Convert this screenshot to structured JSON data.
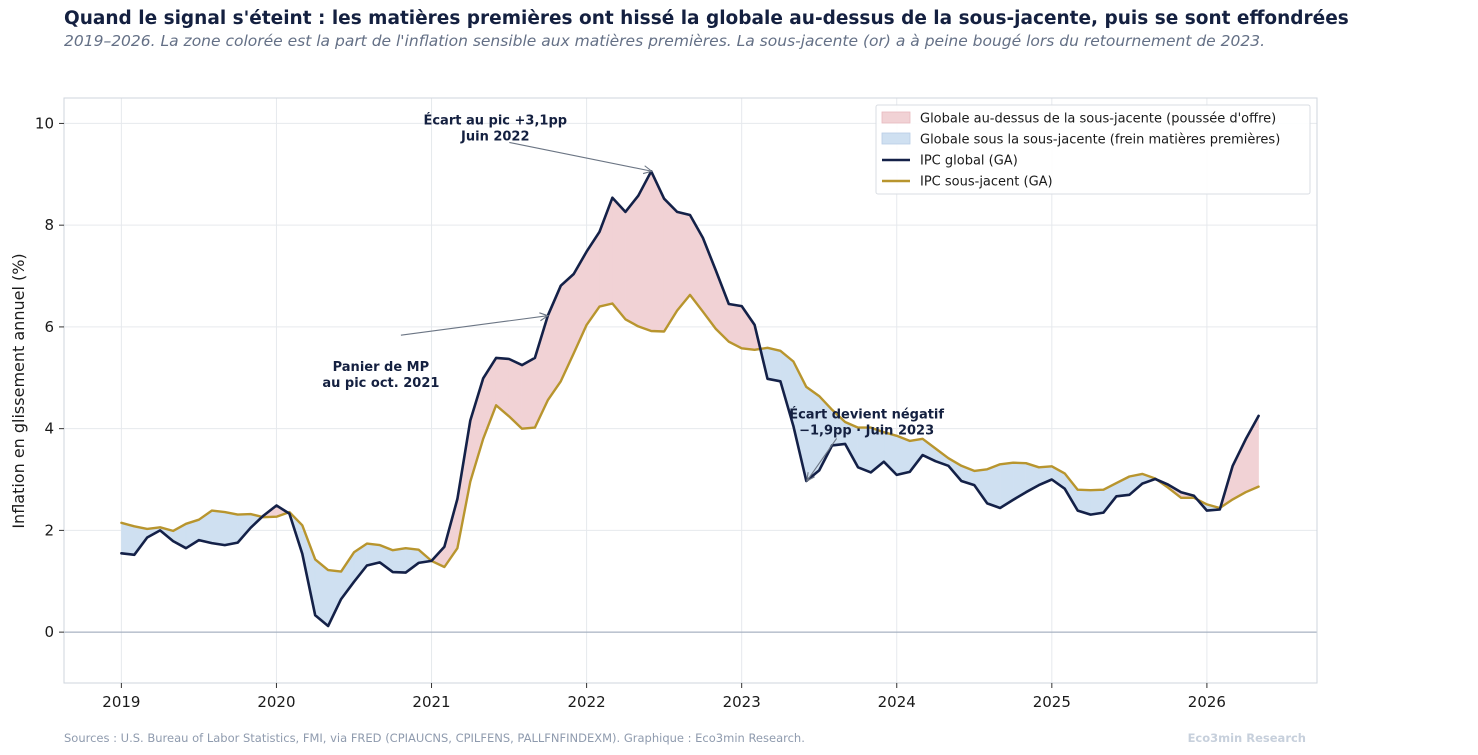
{
  "chart_data": {
    "type": "line",
    "title": "Quand le signal s'éteint : les matières premières ont hissé la globale au-dessus de la sous-jacente, puis se sont effondrées",
    "subtitle": "2019–2026. La zone colorée est la part de l'inflation sensible aux matières premières. La sous-jacente (or) a à peine bougé lors du retournement de 2023.",
    "xlabel": "",
    "ylabel": "Inflation en glissement annuel (%)",
    "xlim": [
      2018.63,
      2026.71
    ],
    "ylim": [
      -1,
      10.5
    ],
    "x_ticks": [
      2019,
      2020,
      2021,
      2022,
      2023,
      2024,
      2025,
      2026
    ],
    "x_tick_labels": [
      "2019",
      "2020",
      "2021",
      "2022",
      "2023",
      "2024",
      "2025",
      "2026"
    ],
    "y_ticks": [
      0,
      2,
      4,
      6,
      8,
      10
    ],
    "y_tick_labels": [
      "0",
      "2",
      "4",
      "6",
      "8",
      "10"
    ],
    "grid": true,
    "legend_position": "top-right",
    "start": "2019-01",
    "frequency": "monthly",
    "colors": {
      "headline": "#142148",
      "core": "#b8952e",
      "above_fill": "#f1d2d5",
      "below_fill": "#cfe0f1",
      "zero_line": "#97a3b6"
    },
    "series": [
      {
        "name": "IPC global (GA)",
        "values": [
          1.55,
          1.52,
          1.86,
          2.0,
          1.79,
          1.65,
          1.81,
          1.75,
          1.71,
          1.76,
          2.05,
          2.29,
          2.49,
          2.33,
          1.54,
          0.33,
          0.12,
          0.65,
          0.99,
          1.31,
          1.37,
          1.18,
          1.17,
          1.36,
          1.4,
          1.68,
          2.62,
          4.16,
          4.99,
          5.39,
          5.37,
          5.25,
          5.39,
          6.22,
          6.81,
          7.04,
          7.48,
          7.87,
          8.54,
          8.26,
          8.58,
          9.06,
          8.52,
          8.26,
          8.2,
          7.75,
          7.11,
          6.45,
          6.41,
          6.04,
          4.98,
          4.93,
          4.05,
          2.97,
          3.18,
          3.67,
          3.7,
          3.24,
          3.14,
          3.35,
          3.09,
          3.15,
          3.48,
          3.36,
          3.27,
          2.97,
          2.89,
          2.53,
          2.44,
          2.6,
          2.75,
          2.89,
          3.0,
          2.82,
          2.39,
          2.31,
          2.35,
          2.67,
          2.7,
          2.92,
          3.01,
          2.9,
          2.75,
          2.68,
          2.39,
          2.41,
          3.27,
          3.79,
          4.25
        ]
      },
      {
        "name": "IPC sous-jacent (GA)",
        "values": [
          2.15,
          2.08,
          2.03,
          2.06,
          1.99,
          2.13,
          2.21,
          2.39,
          2.36,
          2.31,
          2.32,
          2.26,
          2.27,
          2.36,
          2.1,
          1.43,
          1.22,
          1.19,
          1.57,
          1.74,
          1.71,
          1.61,
          1.65,
          1.62,
          1.4,
          1.28,
          1.65,
          2.96,
          3.8,
          4.46,
          4.24,
          4.0,
          4.02,
          4.56,
          4.93,
          5.48,
          6.04,
          6.4,
          6.46,
          6.15,
          6.01,
          5.92,
          5.91,
          6.32,
          6.63,
          6.3,
          5.96,
          5.71,
          5.58,
          5.55,
          5.59,
          5.53,
          5.32,
          4.82,
          4.64,
          4.37,
          4.13,
          4.02,
          4.02,
          3.93,
          3.86,
          3.76,
          3.8,
          3.61,
          3.42,
          3.27,
          3.17,
          3.2,
          3.3,
          3.33,
          3.32,
          3.24,
          3.26,
          3.12,
          2.8,
          2.79,
          2.8,
          2.93,
          3.06,
          3.11,
          3.02,
          2.84,
          2.64,
          2.64,
          2.51,
          2.44,
          2.61,
          2.75,
          2.86
        ]
      }
    ],
    "fill_labels": {
      "above": "Globale au-dessus de la sous-jacente (poussée d'offre)",
      "below": "Globale sous la sous-jacente (frein matières premières)"
    },
    "annotations": [
      {
        "lines": [
          "Écart au pic +3,1pp",
          "Juin 2022"
        ],
        "x": 2021.05,
        "y": 9.98,
        "target_x": 2022.42,
        "target_y": 9.06
      },
      {
        "lines": [
          "Panier de MP",
          "au pic oct. 2021"
        ],
        "x": 2020.48,
        "y": 5.13,
        "target_x": 2021.75,
        "target_y": 6.22
      },
      {
        "lines": [
          "Écart devient négatif",
          "−1,9pp · Juin 2023"
        ],
        "x": 2023.58,
        "y": 4.2,
        "target_x": 2023.42,
        "target_y": 2.97
      }
    ]
  },
  "footer": {
    "source": "Sources : U.S. Bureau of Labor Statistics, FMI, via FRED (CPIAUCNS, CPILFENS, PALLFNFINDEXM). Graphique : Eco3min Research.",
    "brand": "Eco3min Research"
  }
}
